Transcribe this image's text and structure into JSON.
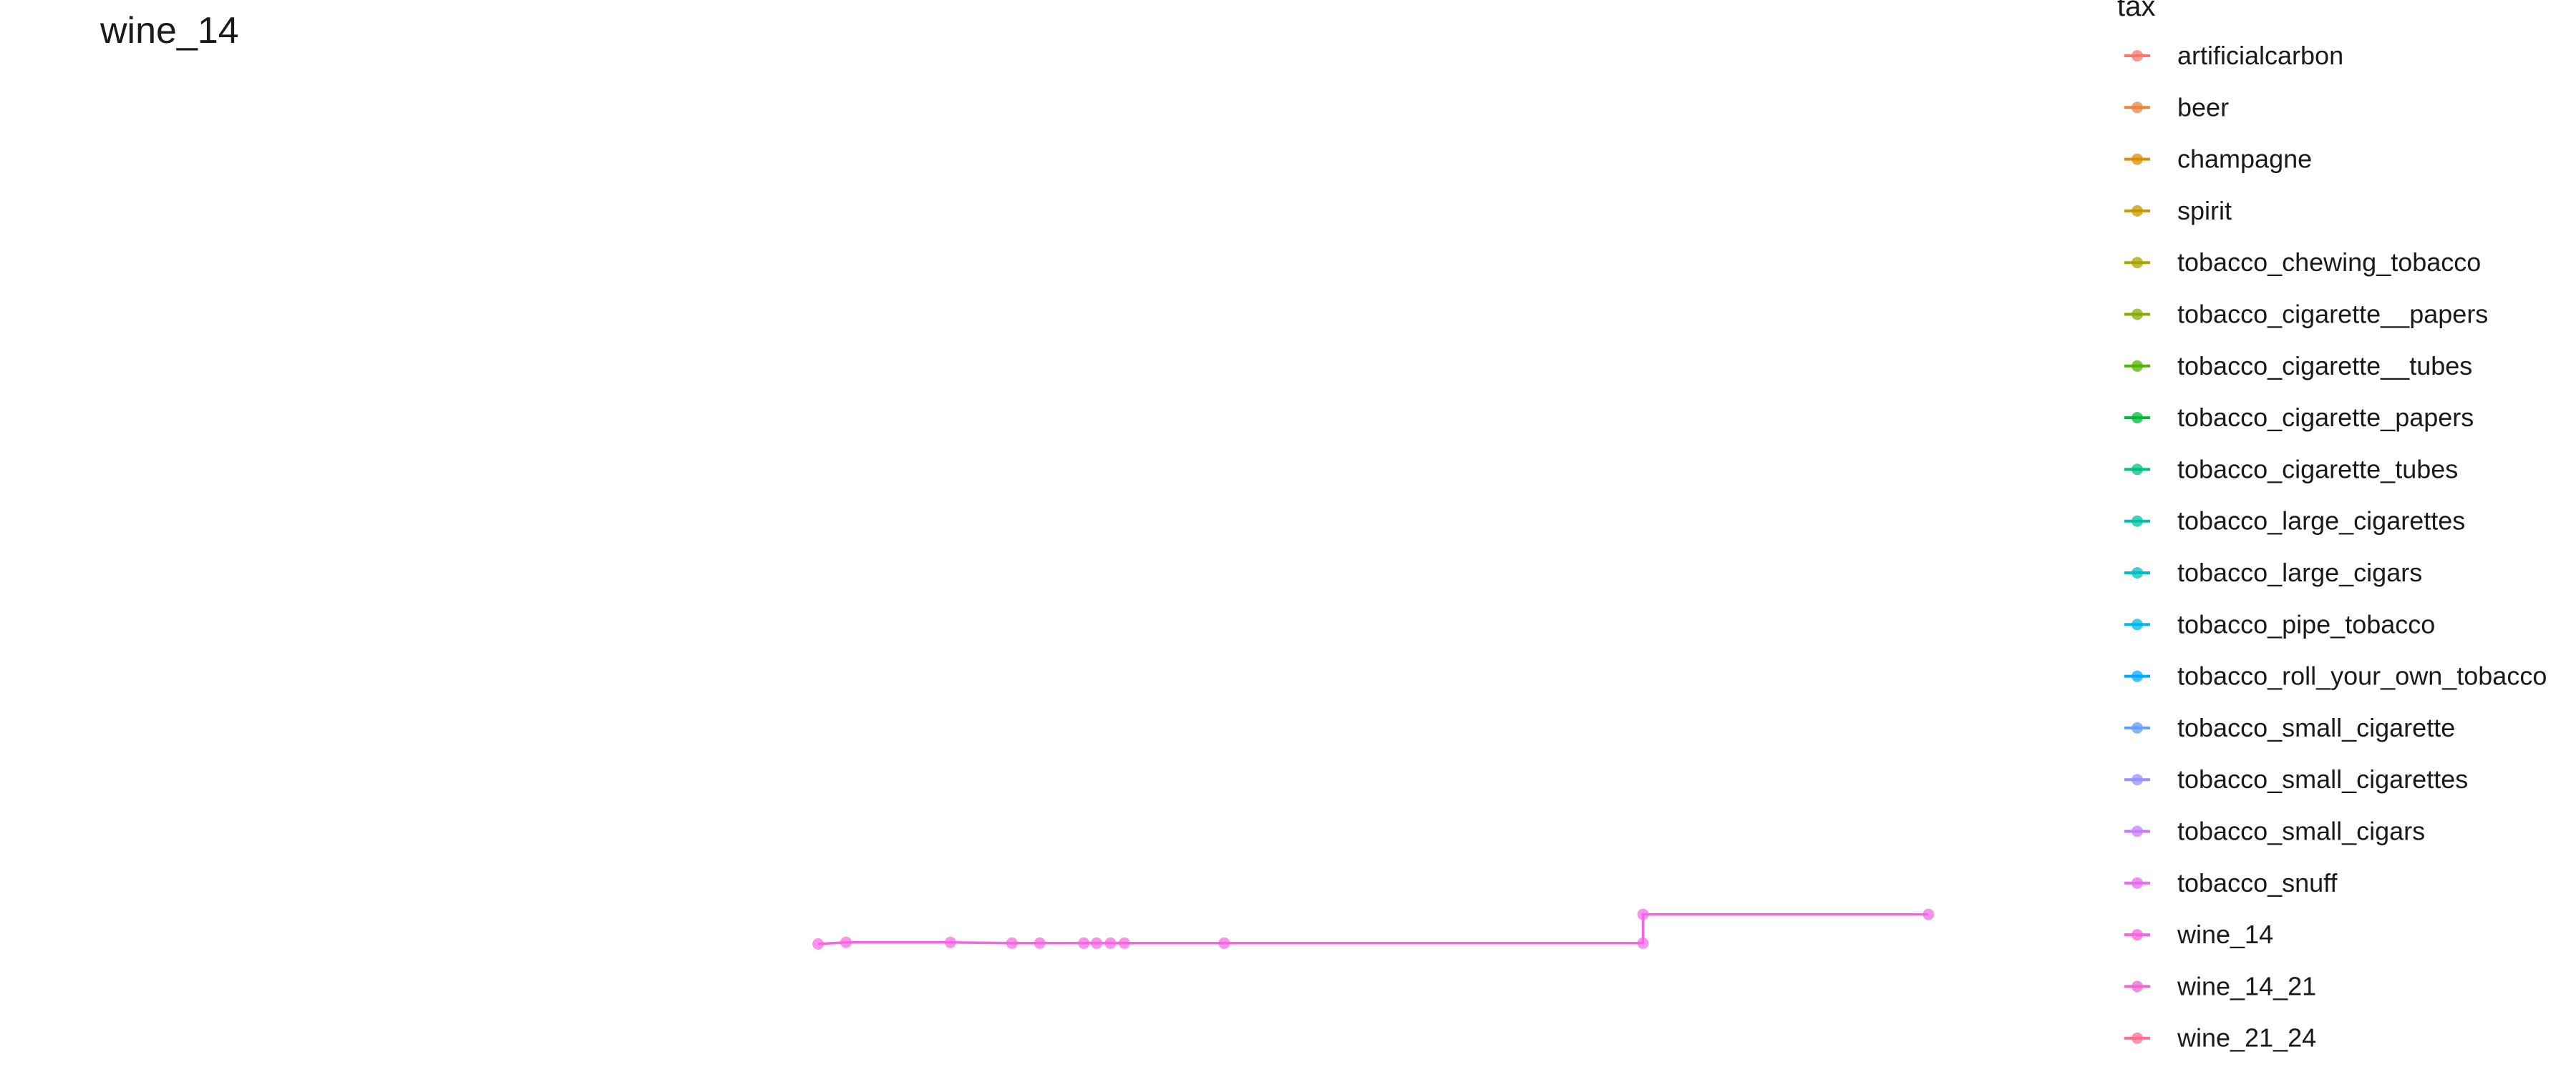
{
  "chart_data": {
    "type": "line",
    "title": "wine_14",
    "xlabel": "",
    "ylabel": "",
    "grid": false,
    "axes_visible": false,
    "x_range": [
      0,
      1000
    ],
    "y_range": [
      0,
      100
    ],
    "legend": {
      "title": "tax",
      "position": "right",
      "items": [
        {
          "label": "artificialcarbon",
          "color": "#F8766D"
        },
        {
          "label": "beer",
          "color": "#EC823C"
        },
        {
          "label": "champagne",
          "color": "#DA8F00"
        },
        {
          "label": "spirit",
          "color": "#C49A00"
        },
        {
          "label": "tobacco_chewing_tobacco",
          "color": "#A9A400"
        },
        {
          "label": "tobacco_cigarette__papers",
          "color": "#86AC00"
        },
        {
          "label": "tobacco_cigarette__tubes",
          "color": "#53B400"
        },
        {
          "label": "tobacco_cigarette_papers",
          "color": "#00BA38"
        },
        {
          "label": "tobacco_cigarette_tubes",
          "color": "#00BF7D"
        },
        {
          "label": "tobacco_large_cigarettes",
          "color": "#00C1A7"
        },
        {
          "label": "tobacco_large_cigars",
          "color": "#00BFC4"
        },
        {
          "label": "tobacco_pipe_tobacco",
          "color": "#00B8E7"
        },
        {
          "label": "tobacco_roll_your_own_tobacco",
          "color": "#00A9FF"
        },
        {
          "label": "tobacco_small_cigarette",
          "color": "#619CFF"
        },
        {
          "label": "tobacco_small_cigarettes",
          "color": "#9590FF"
        },
        {
          "label": "tobacco_small_cigars",
          "color": "#C77CFF"
        },
        {
          "label": "tobacco_snuff",
          "color": "#E76BF3"
        },
        {
          "label": "wine_14",
          "color": "#F564E3"
        },
        {
          "label": "wine_14_21",
          "color": "#F166D5"
        },
        {
          "label": "wine_21_24",
          "color": "#FF6C91"
        }
      ]
    },
    "series": [
      {
        "name": "wine_14",
        "color": "#F564E3",
        "step": true,
        "points": [
          {
            "x": 0,
            "y": 10.0
          },
          {
            "x": 24,
            "y": 11.0
          },
          {
            "x": 114,
            "y": 11.0
          },
          {
            "x": 167,
            "y": 10.5
          },
          {
            "x": 191,
            "y": 10.5
          },
          {
            "x": 229,
            "y": 10.5
          },
          {
            "x": 240,
            "y": 10.5
          },
          {
            "x": 252,
            "y": 10.5
          },
          {
            "x": 264,
            "y": 10.5
          },
          {
            "x": 350,
            "y": 10.5
          },
          {
            "x": 711,
            "y": 10.5
          },
          {
            "x": 711,
            "y": 28.0
          },
          {
            "x": 957,
            "y": 28.0
          }
        ]
      }
    ]
  }
}
